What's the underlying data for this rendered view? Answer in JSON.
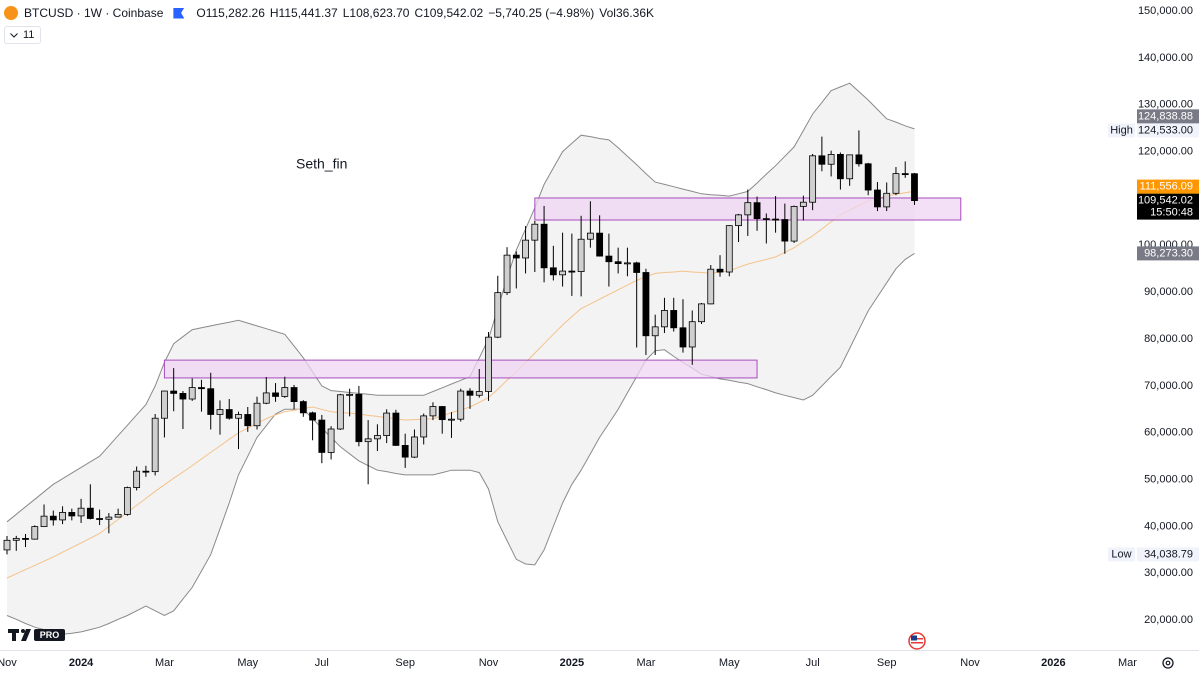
{
  "chart_data": {
    "type": "candlestick",
    "title": "BTCUSD · 1W · Coinbase",
    "header_values": [
      "O115,282.26",
      "H115,441.37",
      "L108,623.70",
      "C109,542.02",
      "−5,740.25 (−4.98%)",
      "Vol36.36K"
    ],
    "indicator_count": "11",
    "annotation": "Seth_fin",
    "logo_badge": "PRO",
    "up_color": "#cfcfcf",
    "down_color": "#000000",
    "wick_color": "#000000",
    "grid": false,
    "ylim": [
      13640,
      152350
    ],
    "yticks": [
      {
        "value": 20000,
        "label": "20,000.00"
      },
      {
        "value": 30000,
        "label": "30,000.00"
      },
      {
        "value": 40000,
        "label": "40,000.00"
      },
      {
        "value": 50000,
        "label": "50,000.00"
      },
      {
        "value": 60000,
        "label": "60,000.00"
      },
      {
        "value": 70000,
        "label": "70,000.00"
      },
      {
        "value": 80000,
        "label": "80,000.00"
      },
      {
        "value": 90000,
        "label": "90,000.00"
      },
      {
        "value": 100000,
        "label": "100,000.00"
      },
      {
        "value": 110000,
        "label": "110,000.00"
      },
      {
        "value": 120000,
        "label": "120,000.00"
      },
      {
        "value": 130000,
        "label": "130,000.00"
      },
      {
        "value": 140000,
        "label": "140,000.00"
      },
      {
        "value": 150000,
        "label": "150,000.00"
      }
    ],
    "categories": [
      "Nov",
      null,
      null,
      null,
      null,
      null,
      null,
      null,
      "2024",
      null,
      null,
      null,
      null,
      null,
      null,
      null,
      null,
      "Mar",
      null,
      null,
      null,
      null,
      null,
      null,
      null,
      null,
      "May",
      null,
      null,
      null,
      null,
      null,
      null,
      null,
      "Jul",
      null,
      null,
      null,
      null,
      null,
      null,
      null,
      null,
      "Sep",
      null,
      null,
      null,
      null,
      null,
      null,
      null,
      null,
      "Nov",
      null,
      null,
      null,
      null,
      null,
      null,
      null,
      null,
      "2025",
      null,
      null,
      null,
      null,
      null,
      null,
      null,
      "Mar",
      null,
      null,
      null,
      null,
      null,
      null,
      null,
      null,
      "May",
      null,
      null,
      null,
      null,
      null,
      null,
      null,
      null,
      "Jul",
      null,
      null,
      null,
      null,
      null,
      null,
      null,
      "Sep",
      null,
      null,
      null,
      null,
      null,
      null,
      null,
      null,
      "Nov",
      null,
      null,
      null,
      null,
      null,
      null,
      null,
      null,
      "2026",
      null,
      null,
      null,
      null,
      null,
      null,
      null,
      "Mar"
    ],
    "ohlc": [
      [
        35000,
        37980,
        34038.79,
        37050
      ],
      [
        37050,
        38000,
        34800,
        37450
      ],
      [
        37450,
        38400,
        35600,
        37300
      ],
      [
        37300,
        40250,
        37200,
        39970
      ],
      [
        39970,
        44700,
        39900,
        42200
      ],
      [
        42200,
        43400,
        40200,
        41400
      ],
      [
        41400,
        44300,
        40500,
        43000
      ],
      [
        43000,
        43800,
        41300,
        42250
      ],
      [
        42250,
        45900,
        40750,
        43900
      ],
      [
        43900,
        49000,
        41500,
        41700
      ],
      [
        41700,
        43600,
        40300,
        41550
      ],
      [
        41550,
        42850,
        38550,
        42000
      ],
      [
        42000,
        43800,
        41900,
        42580
      ],
      [
        42580,
        48500,
        42300,
        48300
      ],
      [
        48300,
        52800,
        47700,
        51800
      ],
      [
        51800,
        52950,
        50600,
        51700
      ],
      [
        51700,
        64000,
        50900,
        63100
      ],
      [
        63100,
        69000,
        59000,
        68900
      ],
      [
        68900,
        73800,
        64600,
        68400
      ],
      [
        68400,
        68900,
        60800,
        67200
      ],
      [
        67200,
        71600,
        66800,
        69650
      ],
      [
        69650,
        71300,
        64500,
        69400
      ],
      [
        69400,
        72800,
        60700,
        63900
      ],
      [
        63900,
        66900,
        59600,
        64950
      ],
      [
        64950,
        67200,
        62800,
        63100
      ],
      [
        63100,
        64500,
        56500,
        63900
      ],
      [
        63900,
        65500,
        60200,
        61500
      ],
      [
        61500,
        67700,
        60700,
        66300
      ],
      [
        66300,
        71900,
        66100,
        68500
      ],
      [
        68500,
        70600,
        66600,
        67750
      ],
      [
        67750,
        71950,
        67450,
        69650
      ],
      [
        69650,
        70200,
        65000,
        66650
      ],
      [
        66650,
        66950,
        63400,
        64250
      ],
      [
        64250,
        64500,
        58400,
        62700
      ],
      [
        62700,
        63800,
        53500,
        55800
      ],
      [
        55800,
        61400,
        54300,
        60800
      ],
      [
        60800,
        68300,
        60600,
        68100
      ],
      [
        68100,
        69400,
        63500,
        68200
      ],
      [
        68200,
        70000,
        57100,
        58100
      ],
      [
        58100,
        62700,
        49000,
        58700
      ],
      [
        58700,
        61800,
        56100,
        59400
      ],
      [
        59400,
        65000,
        57800,
        64200
      ],
      [
        64200,
        64900,
        57200,
        57300
      ],
      [
        57300,
        59800,
        52500,
        54800
      ],
      [
        54800,
        60700,
        54600,
        59100
      ],
      [
        59100,
        64100,
        57500,
        63600
      ],
      [
        63600,
        66500,
        62700,
        65600
      ],
      [
        65600,
        65700,
        59800,
        62800
      ],
      [
        62800,
        64400,
        58900,
        62900
      ],
      [
        62900,
        69400,
        62400,
        68900
      ],
      [
        68900,
        69500,
        65100,
        68000
      ],
      [
        68000,
        73600,
        67500,
        68800
      ],
      [
        68800,
        81500,
        66800,
        80400
      ],
      [
        80400,
        93500,
        80200,
        89900
      ],
      [
        89900,
        99600,
        89400,
        97900
      ],
      [
        97900,
        98700,
        90800,
        97300
      ],
      [
        97300,
        104100,
        94000,
        101100
      ],
      [
        101100,
        105200,
        94300,
        104500
      ],
      [
        104500,
        108400,
        92100,
        95200
      ],
      [
        95200,
        99900,
        92500,
        93700
      ],
      [
        93700,
        102700,
        91200,
        94500
      ],
      [
        94500,
        102500,
        89200,
        94400
      ],
      [
        94400,
        106300,
        89100,
        101300
      ],
      [
        101300,
        109400,
        99500,
        102600
      ],
      [
        102600,
        106400,
        97600,
        97700
      ],
      [
        97700,
        102500,
        91200,
        96500
      ],
      [
        96500,
        99500,
        94000,
        96100
      ],
      [
        96100,
        99500,
        93400,
        96250
      ],
      [
        96250,
        96500,
        78200,
        94200
      ],
      [
        94200,
        95000,
        76600,
        80700
      ],
      [
        80700,
        85200,
        76600,
        82600
      ],
      [
        82600,
        88800,
        81300,
        86100
      ],
      [
        86100,
        88800,
        81600,
        82400
      ],
      [
        82400,
        88500,
        77100,
        78300
      ],
      [
        78300,
        86100,
        74500,
        83700
      ],
      [
        83700,
        87700,
        83200,
        87500
      ],
      [
        87500,
        95800,
        87400,
        94900
      ],
      [
        94900,
        97900,
        93300,
        94300
      ],
      [
        94300,
        104300,
        93400,
        104200
      ],
      [
        104200,
        106700,
        100700,
        106500
      ],
      [
        106500,
        111900,
        102000,
        109100
      ],
      [
        109100,
        110400,
        103100,
        105700
      ],
      [
        105700,
        106800,
        100400,
        105600
      ],
      [
        105600,
        110500,
        102700,
        105500
      ],
      [
        105500,
        108900,
        98200,
        100900
      ],
      [
        100900,
        108500,
        100500,
        108300
      ],
      [
        108300,
        110600,
        105300,
        109200
      ],
      [
        109200,
        119500,
        107500,
        119100
      ],
      [
        119100,
        123200,
        115800,
        117300
      ],
      [
        117300,
        120200,
        114700,
        119400
      ],
      [
        119400,
        119800,
        111900,
        114200
      ],
      [
        114200,
        119300,
        112700,
        119300
      ],
      [
        119300,
        124533,
        116800,
        117400
      ],
      [
        117400,
        117600,
        110700,
        111800
      ],
      [
        111800,
        113500,
        107300,
        108200
      ],
      [
        108200,
        113400,
        107300,
        111100
      ],
      [
        111100,
        116700,
        110700,
        115300
      ],
      [
        115300,
        117900,
        114400,
        115282.26
      ],
      [
        115282.26,
        115441.37,
        108623.7,
        109542.02
      ],
      null,
      null,
      null,
      null,
      null,
      null,
      null,
      null,
      null,
      null,
      null,
      null,
      null,
      null,
      null,
      null,
      null,
      null,
      null,
      null,
      null,
      null,
      null
    ],
    "bollinger": {
      "fill_color": "#f3f3f3",
      "line_color": "#8a8a8a",
      "basis_color": "#f5c28a",
      "upper": [
        41000,
        42600,
        44200,
        45800,
        47400,
        49000,
        50200,
        51400,
        52600,
        53800,
        55000,
        57200,
        59400,
        61600,
        63800,
        66000,
        70000,
        75000,
        79000,
        80500,
        82000,
        82400,
        82800,
        83200,
        83600,
        84000,
        83400,
        82800,
        82200,
        81600,
        81000,
        78500,
        76000,
        73000,
        70000,
        69000,
        68800,
        68600,
        68400,
        68200,
        68000,
        68000,
        68000,
        68000,
        68000,
        68000,
        68800,
        69600,
        70400,
        71200,
        72000,
        76000,
        80000,
        86500,
        93000,
        99000,
        103500,
        108000,
        113000,
        116500,
        120000,
        121800,
        123500,
        123200,
        122800,
        122500,
        120800,
        119000,
        117200,
        115300,
        113500,
        113000,
        112500,
        112000,
        111500,
        111000,
        110800,
        110700,
        110500,
        111000,
        111500,
        113300,
        115200,
        117000,
        119000,
        121000,
        124500,
        128000,
        130500,
        133000,
        133800,
        134600,
        132800,
        131000,
        129000,
        127000,
        126300,
        125500,
        124838.88,
        null,
        null,
        null,
        null,
        null,
        null,
        null,
        null,
        null,
        null,
        null,
        null,
        null,
        null,
        null,
        null,
        null,
        null,
        null,
        null,
        null,
        null,
        null
      ],
      "basis": [
        29000,
        29900,
        30800,
        31700,
        32600,
        33500,
        34500,
        35500,
        36500,
        37500,
        38500,
        40000,
        41500,
        43000,
        44500,
        46000,
        47500,
        48900,
        50300,
        51600,
        53000,
        54400,
        55800,
        57200,
        58600,
        60000,
        61000,
        62000,
        63000,
        63800,
        64500,
        64800,
        65200,
        65500,
        65000,
        64500,
        64300,
        64200,
        64000,
        63700,
        63500,
        63200,
        63000,
        62700,
        62800,
        62900,
        63000,
        63600,
        64300,
        64900,
        65500,
        66500,
        67500,
        69300,
        71200,
        73000,
        75000,
        77000,
        79000,
        81000,
        83000,
        84800,
        86500,
        87500,
        88500,
        89500,
        90500,
        91500,
        92500,
        93300,
        94000,
        94200,
        94300,
        94500,
        94300,
        94200,
        94000,
        94300,
        94500,
        95300,
        96000,
        96500,
        97000,
        97500,
        98500,
        99500,
        100800,
        102000,
        103500,
        105000,
        106500,
        107500,
        108500,
        109500,
        110000,
        110500,
        110900,
        111200,
        111556.09,
        null,
        null,
        null,
        null,
        null,
        null,
        null,
        null,
        null,
        null,
        null,
        null,
        null,
        null,
        null,
        null,
        null,
        null,
        null,
        null,
        null,
        null,
        null
      ],
      "lower": [
        21000,
        20200,
        19300,
        18500,
        18000,
        17500,
        17000,
        17200,
        17500,
        18000,
        18500,
        19300,
        20200,
        21000,
        22000,
        23000,
        22000,
        21000,
        22000,
        24500,
        27000,
        30500,
        34000,
        39500,
        45000,
        51000,
        55000,
        59000,
        61500,
        64000,
        65000,
        65000,
        65000,
        63000,
        61000,
        59000,
        57000,
        55500,
        54000,
        53000,
        52000,
        51700,
        51300,
        51000,
        51000,
        51000,
        51000,
        51500,
        52000,
        52000,
        52000,
        51500,
        48000,
        41000,
        37000,
        33000,
        32000,
        31800,
        35000,
        40000,
        45000,
        49000,
        52000,
        55500,
        59000,
        62000,
        65000,
        68500,
        72000,
        75500,
        77500,
        77700,
        76300,
        75000,
        73800,
        72500,
        72000,
        71500,
        71200,
        70800,
        70500,
        69800,
        69200,
        68500,
        68000,
        67500,
        67000,
        68000,
        70000,
        72000,
        74000,
        78000,
        82000,
        86000,
        89000,
        92000,
        95000,
        97000,
        98273.3,
        null,
        null,
        null,
        null,
        null,
        null,
        null,
        null,
        null,
        null,
        null,
        null,
        null,
        null,
        null,
        null,
        null,
        null,
        null,
        null,
        null,
        null,
        null
      ]
    },
    "zones": [
      {
        "start": 17,
        "end": 81,
        "low": 71700,
        "high": 75500
      },
      {
        "start": 57,
        "end": 103,
        "low": 105400,
        "high": 110100
      }
    ],
    "zone_fill": "#efd6f3",
    "zone_border": "#a64dbd",
    "price_tags": [
      {
        "value": 124838.88,
        "label": "124,838.88",
        "color": "#787b86"
      },
      {
        "value": 111556.09,
        "label": "111,556.09",
        "color": "#ff9800"
      },
      {
        "value": 109542.02,
        "label": "109,542.02",
        "color": "#000000",
        "countdown": "15:50:48"
      },
      {
        "value": 98273.3,
        "label": "98,273.30",
        "color": "#787b86"
      }
    ],
    "range_markers": [
      {
        "name": "High",
        "value": 124533,
        "label": "124,533.00"
      },
      {
        "name": "Low",
        "value": 34038.79,
        "label": "34,038.79"
      }
    ]
  }
}
